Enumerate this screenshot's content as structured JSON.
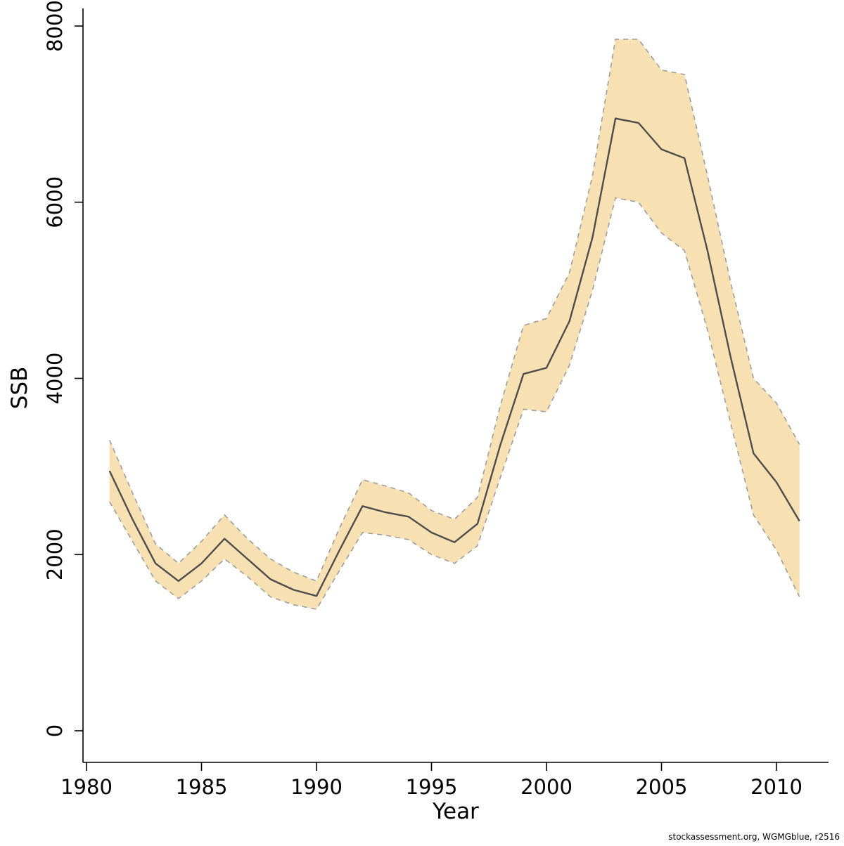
{
  "footer": {
    "text": "stockassessment.org, WGMGblue, r2516"
  },
  "colors": {
    "band_fill": "#f7e0b2",
    "band_edge": "#9e9e9e",
    "mean_line": "#4d4d4d",
    "axis": "#000000"
  },
  "chart_data": {
    "type": "line",
    "title": "",
    "xlabel": "Year",
    "ylabel": "SSB",
    "xlim": [
      1980,
      2011
    ],
    "ylim": [
      0,
      8000
    ],
    "x_ticks": [
      1980,
      1985,
      1990,
      1995,
      2000,
      2005,
      2010
    ],
    "y_ticks": [
      0,
      2000,
      4000,
      6000,
      8000
    ],
    "grid": false,
    "legend_position": "none",
    "x": [
      1981,
      1982,
      1983,
      1984,
      1985,
      1986,
      1987,
      1988,
      1989,
      1990,
      1991,
      1992,
      1993,
      1994,
      1995,
      1996,
      1997,
      1998,
      1999,
      2000,
      2001,
      2002,
      2003,
      2004,
      2005,
      2006,
      2007,
      2008,
      2009,
      2010,
      2011
    ],
    "series": [
      {
        "name": "SSB mean",
        "values": [
          2950,
          2400,
          1900,
          1700,
          1900,
          2180,
          1950,
          1720,
          1600,
          1530,
          2050,
          2550,
          2480,
          2430,
          2250,
          2140,
          2350,
          3250,
          4050,
          4120,
          4650,
          5600,
          6950,
          6900,
          6600,
          6500,
          5450,
          4250,
          3150,
          2820,
          2380
        ]
      },
      {
        "name": "upper confidence bound",
        "values": [
          3300,
          2700,
          2120,
          1900,
          2150,
          2450,
          2180,
          1950,
          1800,
          1700,
          2300,
          2850,
          2780,
          2700,
          2500,
          2400,
          2650,
          3700,
          4600,
          4680,
          5200,
          6300,
          7850,
          7850,
          7500,
          7450,
          6300,
          5100,
          4000,
          3720,
          3250
        ]
      },
      {
        "name": "lower confidence bound",
        "values": [
          2600,
          2150,
          1700,
          1500,
          1700,
          1950,
          1750,
          1520,
          1430,
          1380,
          1820,
          2250,
          2220,
          2170,
          2000,
          1900,
          2100,
          2880,
          3650,
          3620,
          4150,
          5000,
          6050,
          6000,
          5650,
          5450,
          4550,
          3500,
          2450,
          2050,
          1520
        ]
      }
    ]
  }
}
